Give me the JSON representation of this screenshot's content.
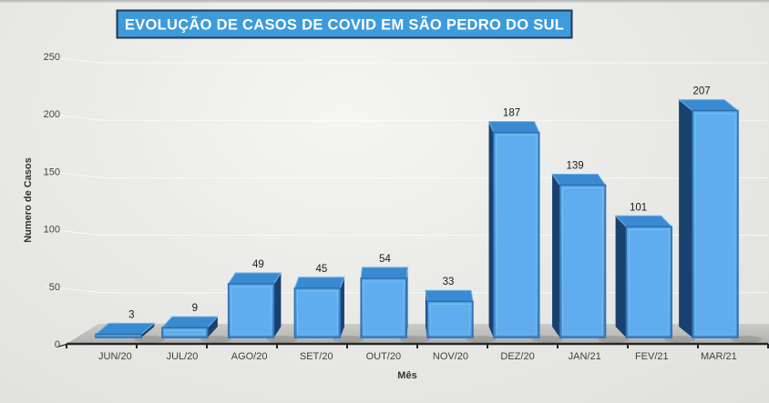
{
  "title": "EVOLUÇÃO DE CASOS DE COVID EM SÃO PEDRO DO SUL",
  "chart_data": {
    "type": "bar",
    "style": "3d-column",
    "title": "EVOLUÇÃO DE CASOS DE COVID EM SÃO PEDRO DO SUL",
    "categories": [
      "JUN/20",
      "JUL/20",
      "AGO/20",
      "SET/20",
      "OUT/20",
      "NOV/20",
      "DEZ/20",
      "JAN/21",
      "FEV/21",
      "MAR/21"
    ],
    "values": [
      3,
      9,
      49,
      45,
      54,
      33,
      187,
      139,
      101,
      207
    ],
    "data_labels_shown": true,
    "xlabel": "Mês",
    "ylabel": "Numero de Casos",
    "ylim": [
      0,
      250
    ],
    "yticks": [
      0,
      50,
      100,
      150,
      200,
      250
    ],
    "grid": true,
    "legend": false
  },
  "colors": {
    "title_bg": "#3E9BDB",
    "title_border": "#1C3A55",
    "title_text": "#FFFFFF",
    "bar_front": "#4D9FE3",
    "bar_front_inner": "#5FADEE",
    "bar_top": "#3A8AD2",
    "bar_top_edge": "#6AB2EC",
    "bar_side_dark": "#1A416D",
    "bar_border": "#2B6EAE",
    "floor_top": "#C9C9C7",
    "floor_bottom": "#B2B2B0",
    "axis": "#262626",
    "gridline": "#FFFFFF",
    "label": "#3F3F3F",
    "background": "#E9E9E7"
  }
}
